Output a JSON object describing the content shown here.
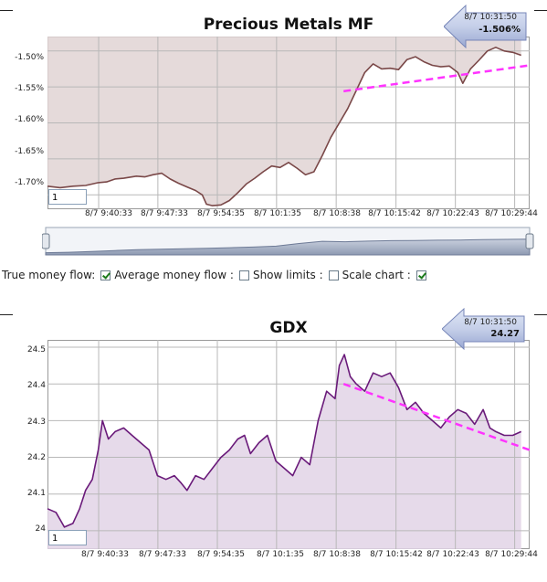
{
  "chart_data": [
    {
      "type": "area",
      "title": "Precious Metals MF",
      "ylim": [
        -1.72,
        -1.48
      ],
      "yticks": [
        -1.5,
        -1.55,
        -1.6,
        -1.65,
        -1.7
      ],
      "ytick_labels": [
        "-1.50%",
        "-1.55%",
        "-1.60%",
        "-1.65%",
        "-1.70%"
      ],
      "xticks": [
        "8/7 9:40:33",
        "8/7 9:47:33",
        "8/7 9:54:35",
        "8/7 10:1:35",
        "8/7 10:8:38",
        "8/7 10:15:42",
        "8/7 10:22:43",
        "8/7 10:29:44"
      ],
      "xtick_minutes": [
        40.55,
        47.55,
        54.58,
        61.58,
        68.63,
        75.7,
        82.72,
        89.73
      ],
      "xlim_minutes": [
        34.5,
        91.5
      ],
      "grid": true,
      "line_color": "#7a4848",
      "fill_color": "#e0d4d4",
      "series": [
        {
          "values": [
            [
              34.5,
              -1.688
            ],
            [
              36,
              -1.69
            ],
            [
              37.5,
              -1.688
            ],
            [
              39,
              -1.687
            ],
            [
              40.5,
              -1.683
            ],
            [
              41.5,
              -1.682
            ],
            [
              42.5,
              -1.678
            ],
            [
              43.5,
              -1.677
            ],
            [
              45,
              -1.674
            ],
            [
              46,
              -1.675
            ],
            [
              47,
              -1.672
            ],
            [
              48,
              -1.67
            ],
            [
              49,
              -1.678
            ],
            [
              50,
              -1.684
            ],
            [
              51,
              -1.689
            ],
            [
              52,
              -1.694
            ],
            [
              52.8,
              -1.7
            ],
            [
              53.3,
              -1.713
            ],
            [
              54,
              -1.715
            ],
            [
              55,
              -1.714
            ],
            [
              56,
              -1.708
            ],
            [
              57,
              -1.697
            ],
            [
              58,
              -1.685
            ],
            [
              59,
              -1.677
            ],
            [
              60,
              -1.668
            ],
            [
              61,
              -1.66
            ],
            [
              62,
              -1.662
            ],
            [
              63,
              -1.655
            ],
            [
              64,
              -1.663
            ],
            [
              65,
              -1.672
            ],
            [
              66,
              -1.668
            ],
            [
              67,
              -1.645
            ],
            [
              68,
              -1.62
            ],
            [
              69,
              -1.6
            ],
            [
              70,
              -1.58
            ],
            [
              71,
              -1.555
            ],
            [
              72,
              -1.53
            ],
            [
              73,
              -1.518
            ],
            [
              74,
              -1.525
            ],
            [
              75,
              -1.524
            ],
            [
              76,
              -1.526
            ],
            [
              77,
              -1.512
            ],
            [
              78,
              -1.508
            ],
            [
              79,
              -1.515
            ],
            [
              80,
              -1.52
            ],
            [
              81,
              -1.522
            ],
            [
              82,
              -1.521
            ],
            [
              83,
              -1.53
            ],
            [
              83.6,
              -1.545
            ],
            [
              84.5,
              -1.525
            ],
            [
              85.5,
              -1.513
            ],
            [
              86.5,
              -1.5
            ],
            [
              87.5,
              -1.495
            ],
            [
              88.5,
              -1.5
            ],
            [
              89.5,
              -1.502
            ],
            [
              90.5,
              -1.506
            ]
          ]
        }
      ],
      "trendline": {
        "points": [
          [
            69.5,
            -1.556
          ],
          [
            91.5,
            -1.52
          ]
        ],
        "color": "#ff33ff"
      },
      "tooltip": {
        "date": "8/7 10:31:50",
        "value": "-1.506%"
      },
      "zoom_value": "1"
    },
    {
      "type": "area",
      "title": "GDX",
      "ylim": [
        23.95,
        24.52
      ],
      "yticks": [
        24.5,
        24.4,
        24.3,
        24.2,
        24.1,
        24
      ],
      "ytick_labels": [
        "24.5",
        "24.4",
        "24.3",
        "24.2",
        "24.1",
        "24"
      ],
      "xticks": [
        "8/7 9:40:33",
        "8/7 9:47:33",
        "8/7 9:54:35",
        "8/7 10:1:35",
        "8/7 10:8:38",
        "8/7 10:15:42",
        "8/7 10:22:43",
        "8/7 10:29:44"
      ],
      "xtick_minutes": [
        40.55,
        47.55,
        54.58,
        61.58,
        68.63,
        75.7,
        82.72,
        89.73
      ],
      "xlim_minutes": [
        34.5,
        91.5
      ],
      "grid": true,
      "line_color": "#6a1a7a",
      "fill_color": "#e2d3e6",
      "series": [
        {
          "values": [
            [
              34.5,
              24.06
            ],
            [
              35.5,
              24.05
            ],
            [
              36.5,
              24.01
            ],
            [
              37.5,
              24.02
            ],
            [
              38.3,
              24.06
            ],
            [
              39,
              24.11
            ],
            [
              39.8,
              24.14
            ],
            [
              40.5,
              24.22
            ],
            [
              41,
              24.3
            ],
            [
              41.7,
              24.25
            ],
            [
              42.5,
              24.27
            ],
            [
              43.5,
              24.28
            ],
            [
              44.5,
              24.26
            ],
            [
              45.5,
              24.24
            ],
            [
              46.5,
              24.22
            ],
            [
              47.5,
              24.15
            ],
            [
              48.5,
              24.14
            ],
            [
              49.5,
              24.15
            ],
            [
              50.3,
              24.13
            ],
            [
              51,
              24.11
            ],
            [
              52,
              24.15
            ],
            [
              53,
              24.14
            ],
            [
              54,
              24.17
            ],
            [
              55,
              24.2
            ],
            [
              56,
              24.22
            ],
            [
              57,
              24.25
            ],
            [
              57.8,
              24.26
            ],
            [
              58.5,
              24.21
            ],
            [
              59.5,
              24.24
            ],
            [
              60.5,
              24.26
            ],
            [
              61.5,
              24.19
            ],
            [
              62.5,
              24.17
            ],
            [
              63.5,
              24.15
            ],
            [
              64.5,
              24.2
            ],
            [
              65.5,
              24.18
            ],
            [
              66.5,
              24.3
            ],
            [
              67.5,
              24.38
            ],
            [
              68.5,
              24.36
            ],
            [
              69,
              24.45
            ],
            [
              69.6,
              24.48
            ],
            [
              70.3,
              24.42
            ],
            [
              71,
              24.4
            ],
            [
              72,
              24.38
            ],
            [
              73,
              24.43
            ],
            [
              74,
              24.42
            ],
            [
              75,
              24.43
            ],
            [
              76,
              24.39
            ],
            [
              77,
              24.33
            ],
            [
              78,
              24.35
            ],
            [
              79,
              24.32
            ],
            [
              80,
              24.3
            ],
            [
              81,
              24.28
            ],
            [
              82,
              24.31
            ],
            [
              83,
              24.33
            ],
            [
              84,
              24.32
            ],
            [
              85,
              24.29
            ],
            [
              86,
              24.33
            ],
            [
              86.8,
              24.28
            ],
            [
              87.5,
              24.27
            ],
            [
              88.5,
              24.26
            ],
            [
              89.5,
              24.26
            ],
            [
              90.5,
              24.27
            ]
          ]
        }
      ],
      "trendline": {
        "points": [
          [
            69.5,
            24.4
          ],
          [
            91.5,
            24.22
          ]
        ],
        "color": "#ff33ff"
      },
      "tooltip": {
        "date": "8/7 10:31:50",
        "value": "24.27"
      },
      "zoom_value": "1"
    }
  ],
  "navigator": {
    "values": [
      0.1,
      0.12,
      0.16,
      0.2,
      0.24,
      0.26,
      0.28,
      0.3,
      0.33,
      0.36,
      0.4,
      0.52,
      0.62,
      0.6,
      0.63,
      0.65,
      0.66,
      0.67,
      0.68,
      0.7,
      0.71,
      0.72
    ]
  },
  "controls": {
    "true_money_flow": {
      "label": "True money flow:",
      "checked": true
    },
    "average_money_flow": {
      "label": "Average money flow :",
      "checked": false
    },
    "show_limits": {
      "label": "Show limits :",
      "checked": false
    },
    "scale_chart": {
      "label": "Scale chart :",
      "checked": true
    }
  }
}
